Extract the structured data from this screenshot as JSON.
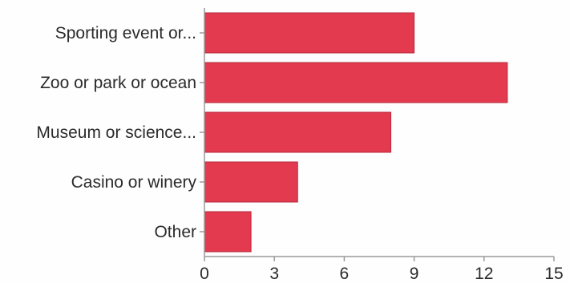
{
  "colors": {
    "bar_fill": "#e33a4f",
    "bar_stroke": "#b62a3c",
    "axis": "#9a9a9a",
    "text": "#2b2b2b"
  },
  "chart_data": {
    "type": "bar",
    "orientation": "horizontal",
    "title": "",
    "xlabel": "",
    "ylabel": "",
    "categories": [
      "Sporting event or...",
      "Zoo or park or ocean",
      "Museum or science...",
      "Casino or winery",
      "Other"
    ],
    "values": [
      9,
      13,
      8,
      4,
      2
    ],
    "xlim": [
      0,
      15
    ],
    "xticks": [
      0,
      3,
      6,
      9,
      12,
      15
    ],
    "xtick_labels": [
      "0",
      "3",
      "6",
      "9",
      "12",
      "15"
    ],
    "grid": false,
    "legend": "none"
  }
}
